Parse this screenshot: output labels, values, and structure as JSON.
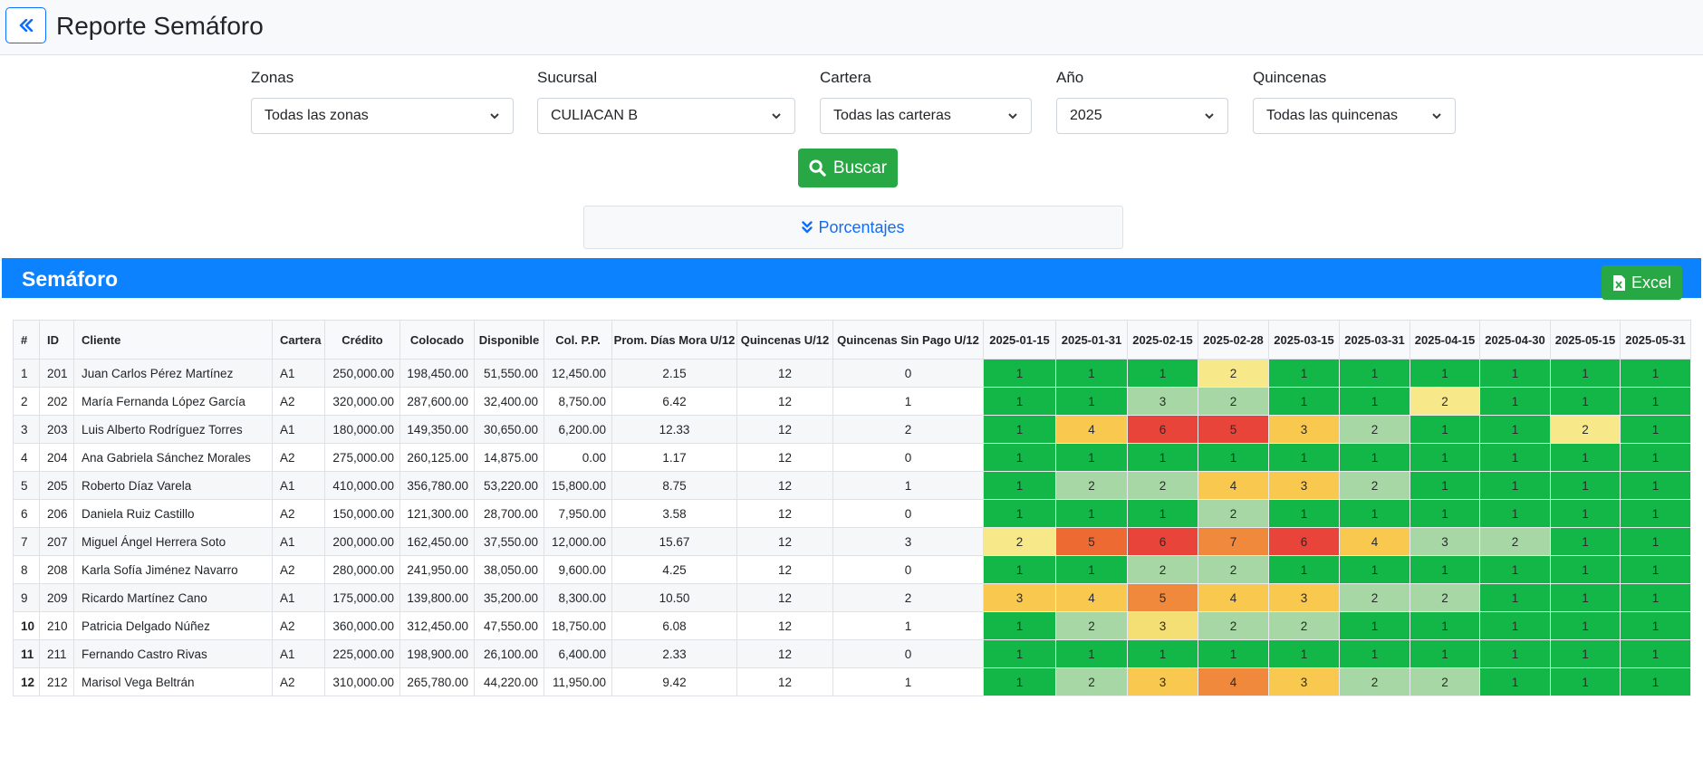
{
  "header": {
    "title": "Reporte Semáforo"
  },
  "filters": [
    {
      "label": "Zonas",
      "value": "Todas las zonas"
    },
    {
      "label": "Sucursal",
      "value": "CULIACAN B"
    },
    {
      "label": "Cartera",
      "value": "Todas las carteras"
    },
    {
      "label": "Año",
      "value": "2025"
    },
    {
      "label": "Quincenas",
      "value": "Todas las quincenas"
    }
  ],
  "search_label": "Buscar",
  "percentages_label": "Porcentajes",
  "section": {
    "title": "Semáforo",
    "excel_label": "Excel"
  },
  "colors": {
    "primary": "#0d82ff",
    "success": "#28a745",
    "level_1": "#12b748",
    "level_2": "#a7d7a4",
    "level_3": "#f9c84e",
    "level_4": "#f4a23b",
    "level_5": "#ee6a33",
    "level_6": "#e8443a",
    "level_7": "#f0893b"
  },
  "table": {
    "columns": [
      "#",
      "ID",
      "Cliente",
      "Cartera",
      "Crédito",
      "Colocado",
      "Disponible",
      "Col. P.P.",
      "Prom. Días Mora U/12",
      "Quincenas U/12",
      "Quincenas Sin Pago U/12"
    ],
    "periods": [
      "2025-01-15",
      "2025-01-31",
      "2025-02-15",
      "2025-02-28",
      "2025-03-15",
      "2025-03-31",
      "2025-04-15",
      "2025-04-30",
      "2025-05-15",
      "2025-05-31"
    ],
    "rows": [
      {
        "n": "1",
        "id": "201",
        "cliente": "Juan Carlos Pérez Martínez",
        "cartera": "A1",
        "credito": "250,000.00",
        "colocado": "198,450.00",
        "disponible": "51,550.00",
        "colpp": "12,450.00",
        "mora": "2.15",
        "quincenas": "12",
        "sinpago": "0",
        "sem": [
          "1",
          "1",
          "1",
          "2",
          "1",
          "1",
          "1",
          "1",
          "1",
          "1"
        ],
        "cls": [
          "s1",
          "s1",
          "s1",
          "s2y",
          "s1",
          "s1",
          "s1",
          "s1",
          "s1",
          "s1"
        ]
      },
      {
        "n": "2",
        "id": "202",
        "cliente": "María Fernanda López García",
        "cartera": "A2",
        "credito": "320,000.00",
        "colocado": "287,600.00",
        "disponible": "32,400.00",
        "colpp": "8,750.00",
        "mora": "6.42",
        "quincenas": "12",
        "sinpago": "1",
        "sem": [
          "1",
          "1",
          "3",
          "2",
          "1",
          "1",
          "2",
          "1",
          "1",
          "1"
        ],
        "cls": [
          "s1",
          "s1",
          "s2",
          "s2",
          "s1",
          "s1",
          "s2y",
          "s1",
          "s1",
          "s1"
        ]
      },
      {
        "n": "3",
        "id": "203",
        "cliente": "Luis Alberto Rodríguez Torres",
        "cartera": "A1",
        "credito": "180,000.00",
        "colocado": "149,350.00",
        "disponible": "30,650.00",
        "colpp": "6,200.00",
        "mora": "12.33",
        "quincenas": "12",
        "sinpago": "2",
        "sem": [
          "1",
          "4",
          "6",
          "5",
          "3",
          "2",
          "1",
          "1",
          "2",
          "1"
        ],
        "cls": [
          "s1",
          "s3",
          "s6",
          "s6",
          "s3",
          "s2",
          "s1",
          "s1",
          "s2y",
          "s1"
        ]
      },
      {
        "n": "4",
        "id": "204",
        "cliente": "Ana Gabriela Sánchez Morales",
        "cartera": "A2",
        "credito": "275,000.00",
        "colocado": "260,125.00",
        "disponible": "14,875.00",
        "colpp": "0.00",
        "mora": "1.17",
        "quincenas": "12",
        "sinpago": "0",
        "sem": [
          "1",
          "1",
          "1",
          "1",
          "1",
          "1",
          "1",
          "1",
          "1",
          "1"
        ],
        "cls": [
          "s1",
          "s1",
          "s1",
          "s1",
          "s1",
          "s1",
          "s1",
          "s1",
          "s1",
          "s1"
        ]
      },
      {
        "n": "5",
        "id": "205",
        "cliente": "Roberto Díaz Varela",
        "cartera": "A1",
        "credito": "410,000.00",
        "colocado": "356,780.00",
        "disponible": "53,220.00",
        "colpp": "15,800.00",
        "mora": "8.75",
        "quincenas": "12",
        "sinpago": "1",
        "sem": [
          "1",
          "2",
          "2",
          "4",
          "3",
          "2",
          "1",
          "1",
          "1",
          "1"
        ],
        "cls": [
          "s1",
          "s2",
          "s2",
          "s3",
          "s3",
          "s2",
          "s1",
          "s1",
          "s1",
          "s1"
        ]
      },
      {
        "n": "6",
        "id": "206",
        "cliente": "Daniela Ruiz Castillo",
        "cartera": "A2",
        "credito": "150,000.00",
        "colocado": "121,300.00",
        "disponible": "28,700.00",
        "colpp": "7,950.00",
        "mora": "3.58",
        "quincenas": "12",
        "sinpago": "0",
        "sem": [
          "1",
          "1",
          "1",
          "2",
          "1",
          "1",
          "1",
          "1",
          "1",
          "1"
        ],
        "cls": [
          "s1",
          "s1",
          "s1",
          "s2",
          "s1",
          "s1",
          "s1",
          "s1",
          "s1",
          "s1"
        ]
      },
      {
        "n": "7",
        "id": "207",
        "cliente": "Miguel Ángel Herrera Soto",
        "cartera": "A1",
        "credito": "200,000.00",
        "colocado": "162,450.00",
        "disponible": "37,550.00",
        "colpp": "12,000.00",
        "mora": "15.67",
        "quincenas": "12",
        "sinpago": "3",
        "sem": [
          "2",
          "5",
          "6",
          "7",
          "6",
          "4",
          "3",
          "2",
          "1",
          "1"
        ],
        "cls": [
          "s2y",
          "s5",
          "s6",
          "s7",
          "s6",
          "s3",
          "s2",
          "s2",
          "s1",
          "s1"
        ]
      },
      {
        "n": "8",
        "id": "208",
        "cliente": "Karla Sofía Jiménez Navarro",
        "cartera": "A2",
        "credito": "280,000.00",
        "colocado": "241,950.00",
        "disponible": "38,050.00",
        "colpp": "9,600.00",
        "mora": "4.25",
        "quincenas": "12",
        "sinpago": "0",
        "sem": [
          "1",
          "1",
          "2",
          "2",
          "1",
          "1",
          "1",
          "1",
          "1",
          "1"
        ],
        "cls": [
          "s1",
          "s1",
          "s2",
          "s2",
          "s1",
          "s1",
          "s1",
          "s1",
          "s1",
          "s1"
        ]
      },
      {
        "n": "9",
        "id": "209",
        "cliente": "Ricardo Martínez Cano",
        "cartera": "A1",
        "credito": "175,000.00",
        "colocado": "139,800.00",
        "disponible": "35,200.00",
        "colpp": "8,300.00",
        "mora": "10.50",
        "quincenas": "12",
        "sinpago": "2",
        "sem": [
          "3",
          "4",
          "5",
          "4",
          "3",
          "2",
          "2",
          "1",
          "1",
          "1"
        ],
        "cls": [
          "s3",
          "s3",
          "s7",
          "s3",
          "s3",
          "s2",
          "s2",
          "s1",
          "s1",
          "s1"
        ]
      },
      {
        "n": "10",
        "id": "210",
        "cliente": "Patricia Delgado Núñez",
        "cartera": "A2",
        "credito": "360,000.00",
        "colocado": "312,450.00",
        "disponible": "47,550.00",
        "colpp": "18,750.00",
        "mora": "6.08",
        "quincenas": "12",
        "sinpago": "1",
        "sem": [
          "1",
          "2",
          "3",
          "2",
          "2",
          "1",
          "1",
          "1",
          "1",
          "1"
        ],
        "cls": [
          "s1",
          "s2",
          "s3g",
          "s2",
          "s2",
          "s1",
          "s1",
          "s1",
          "s1",
          "s1"
        ]
      },
      {
        "n": "11",
        "id": "211",
        "cliente": "Fernando Castro Rivas",
        "cartera": "A1",
        "credito": "225,000.00",
        "colocado": "198,900.00",
        "disponible": "26,100.00",
        "colpp": "6,400.00",
        "mora": "2.33",
        "quincenas": "12",
        "sinpago": "0",
        "sem": [
          "1",
          "1",
          "1",
          "1",
          "1",
          "1",
          "1",
          "1",
          "1",
          "1"
        ],
        "cls": [
          "s1",
          "s1",
          "s1",
          "s1",
          "s1",
          "s1",
          "s1",
          "s1",
          "s1",
          "s1"
        ]
      },
      {
        "n": "12",
        "id": "212",
        "cliente": "Marisol Vega Beltrán",
        "cartera": "A2",
        "credito": "310,000.00",
        "colocado": "265,780.00",
        "disponible": "44,220.00",
        "colpp": "11,950.00",
        "mora": "9.42",
        "quincenas": "12",
        "sinpago": "1",
        "sem": [
          "1",
          "2",
          "3",
          "4",
          "3",
          "2",
          "2",
          "1",
          "1",
          "1"
        ],
        "cls": [
          "s1",
          "s2",
          "s3",
          "s7",
          "s3",
          "s2",
          "s2",
          "s1",
          "s1",
          "s1"
        ]
      }
    ]
  }
}
